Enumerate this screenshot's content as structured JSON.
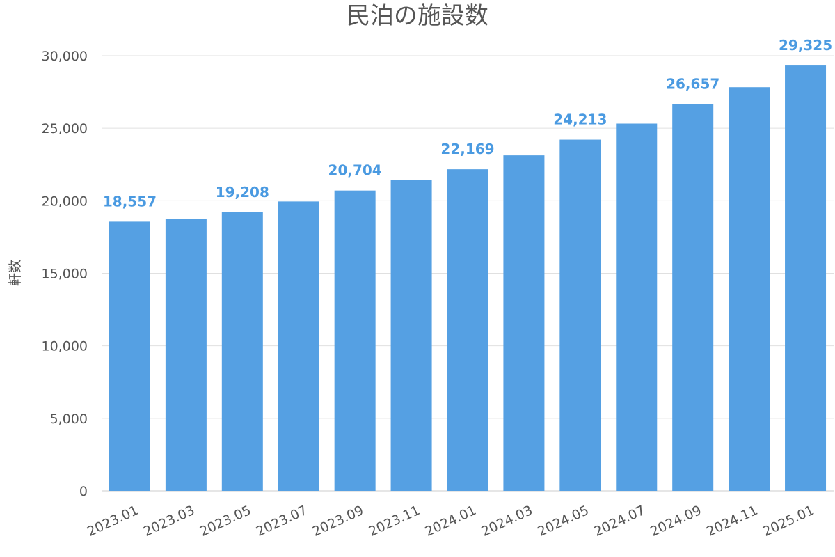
{
  "chart_data": {
    "type": "bar",
    "title": "民泊の施設数",
    "xlabel": "",
    "ylabel": "軒数",
    "categories": [
      "2023.01",
      "2023.03",
      "2023.05",
      "2023.07",
      "2023.09",
      "2023.11",
      "2024.01",
      "2024.03",
      "2024.05",
      "2024.07",
      "2024.09",
      "2024.11",
      "2025.01"
    ],
    "values": [
      18557,
      18760,
      19208,
      19950,
      20704,
      21450,
      22169,
      23130,
      24213,
      25320,
      26657,
      27830,
      29325
    ],
    "data_labels": {
      "2023.01": "18,557",
      "2023.05": "19,208",
      "2023.09": "20,704",
      "2024.01": "22,169",
      "2024.05": "24,213",
      "2024.09": "26,657",
      "2025.01": "29,325"
    },
    "ylim": [
      0,
      30000
    ],
    "y_ticks": [
      0,
      5000,
      10000,
      15000,
      20000,
      25000,
      30000
    ],
    "y_tick_labels": [
      "0",
      "5,000",
      "10,000",
      "15,000",
      "20,000",
      "25,000",
      "30,000"
    ],
    "grid": true,
    "legend": "none",
    "colors": {
      "bar": "#55a0e3",
      "data_label": "#4a9ae1",
      "text": "#555555",
      "grid": "#e0e0e0"
    }
  }
}
